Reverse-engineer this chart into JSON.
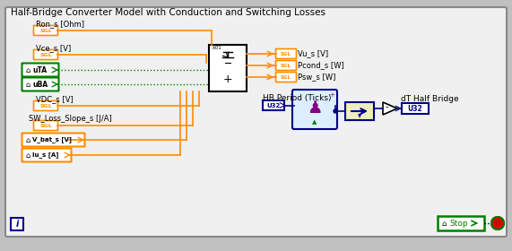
{
  "title": "Half-Bridge Converter Model with Conduction and Switching Losses",
  "bg_color": "#c0c0c0",
  "orange": "#FF8C00",
  "green": "#008000",
  "dark_blue": "#00008B",
  "white": "#FFFFFF",
  "hb_period_label": "HB Period (Ticks)",
  "dt_label": "dT Half Bridge",
  "panel_fc": "#f0f0f0",
  "panel_ec": "#888888",
  "vi_fc": "#ddeeff",
  "arr_fc": "#eeeebb"
}
